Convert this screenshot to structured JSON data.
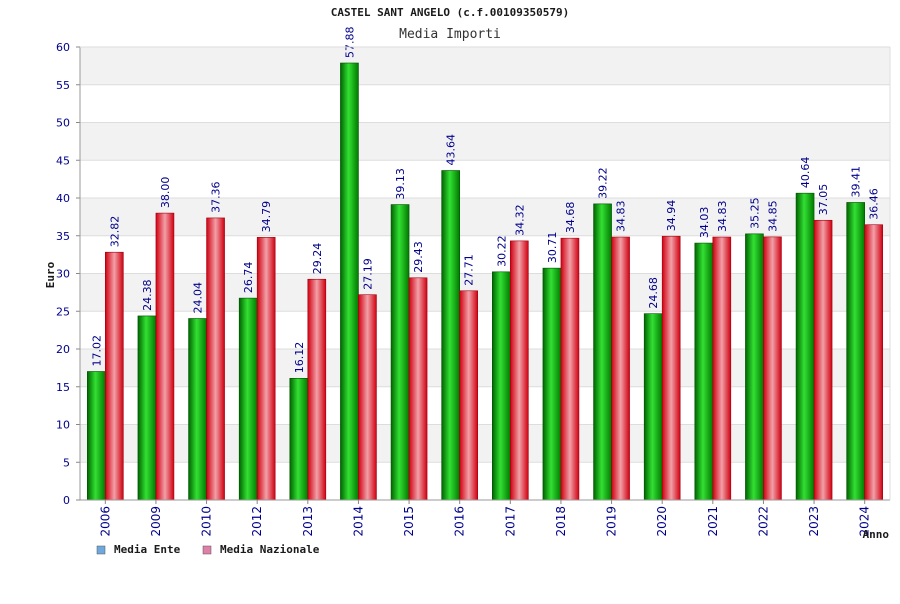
{
  "chart_data": {
    "type": "bar",
    "title": "CASTEL SANT ANGELO (c.f.00109350579)",
    "subtitle": "Media Importi",
    "xlabel": "Anno",
    "ylabel": "Euro",
    "ylim": [
      0,
      60
    ],
    "yticks": [
      0,
      5,
      10,
      15,
      20,
      25,
      30,
      35,
      40,
      45,
      50,
      55,
      60
    ],
    "grid": true,
    "legend_position": "bottom-left",
    "categories": [
      "2006",
      "2009",
      "2010",
      "2012",
      "2013",
      "2014",
      "2015",
      "2016",
      "2017",
      "2018",
      "2019",
      "2020",
      "2021",
      "2022",
      "2023",
      "2024"
    ],
    "series": [
      {
        "name": "Media Ente",
        "color": "#00b000",
        "legend_color": "#6fa8dc",
        "values": [
          17.02,
          24.38,
          24.04,
          26.74,
          16.12,
          57.88,
          39.13,
          43.64,
          30.22,
          30.71,
          39.22,
          24.68,
          34.03,
          35.25,
          40.64,
          39.41
        ],
        "labels": [
          "17.02",
          "24.38",
          "24.04",
          "26.74",
          "16.12",
          "57.88",
          "39.13",
          "43.64",
          "30.22",
          "30.71",
          "39.22",
          "24.68",
          "34.03",
          "35.25",
          "40.64",
          "39.41"
        ]
      },
      {
        "name": "Media Nazionale",
        "color": "#e0202a",
        "legend_color": "#e07fa8",
        "values": [
          32.82,
          38.0,
          37.36,
          34.79,
          29.24,
          27.19,
          29.43,
          27.71,
          34.32,
          34.68,
          34.83,
          34.94,
          34.83,
          34.85,
          37.05,
          36.46
        ],
        "labels": [
          "32.82",
          "38.00",
          "37.36",
          "34.79",
          "29.24",
          "27.19",
          "29.43",
          "27.71",
          "34.32",
          "34.68",
          "34.83",
          "34.94",
          "34.83",
          "34.85",
          "37.05",
          "36.46"
        ]
      }
    ]
  }
}
